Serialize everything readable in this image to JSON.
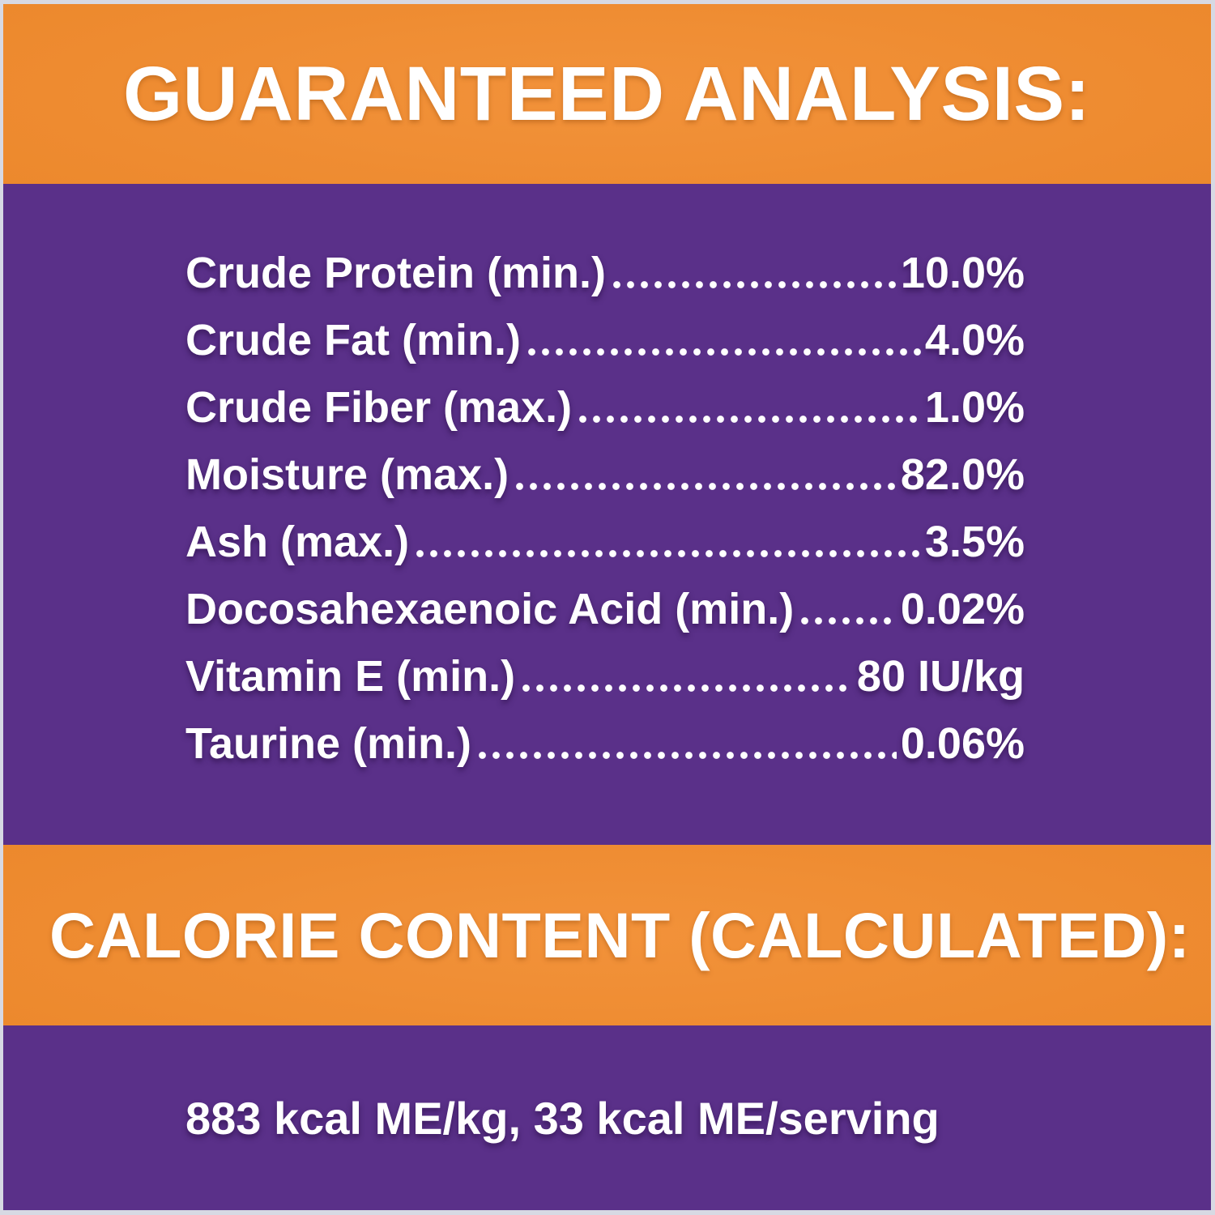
{
  "colors": {
    "border": "#d7d9e3",
    "purple": "#5a3089",
    "orange": "#ec882c",
    "text": "#ffffff"
  },
  "guaranteed_analysis": {
    "title": "GUARANTEED ANALYSIS:",
    "rows": [
      {
        "label": "Crude Protein (min.)",
        "value": "10.0%"
      },
      {
        "label": "Crude Fat (min.)",
        "value": "4.0%"
      },
      {
        "label": "Crude Fiber (max.)",
        "value": "1.0%"
      },
      {
        "label": "Moisture (max.)",
        "value": "82.0%"
      },
      {
        "label": "Ash (max.)",
        "value": "3.5%"
      },
      {
        "label": "Docosahexaenoic Acid (min.)",
        "value": "0.02%"
      },
      {
        "label": "Vitamin E (min.)",
        "value": "80 IU/kg"
      },
      {
        "label": "Taurine (min.)",
        "value": "0.06%"
      }
    ]
  },
  "calorie_content": {
    "title": "CALORIE CONTENT (CALCULATED):",
    "value": "883 kcal ME/kg, 33 kcal ME/serving"
  }
}
